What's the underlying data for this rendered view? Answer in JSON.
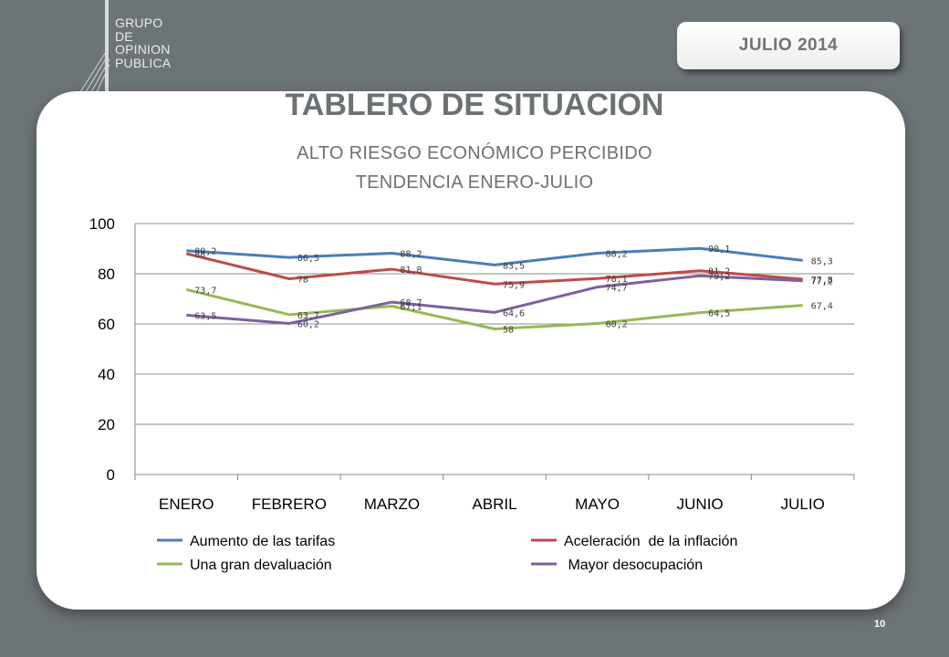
{
  "logo": {
    "lines": [
      "GRUPO",
      "DE",
      "OPINION",
      "PUBLICA"
    ]
  },
  "header": {
    "date": "JULIO  2014"
  },
  "title": "TABLERO DE SITUACIÓN",
  "subtitle_1": "ALTO RIESGO ECONÓMICO PERCIBIDO",
  "subtitle_2": "TENDENCIA ENERO-JULIO",
  "page_number": "10",
  "chart_data": {
    "type": "line",
    "categories": [
      "ENERO",
      "FEBRERO",
      "MARZO",
      "ABRIL",
      "MAYO",
      "JUNIO",
      "JULIO"
    ],
    "ylim": [
      0,
      100
    ],
    "yticks": [
      0,
      20,
      40,
      60,
      80,
      100
    ],
    "grid": true,
    "legend_position": "bottom",
    "series": [
      {
        "name": "Aumento de las tarifas",
        "color": "#4a7ebb",
        "values": [
          89.2,
          86.5,
          88.2,
          83.5,
          88.2,
          90.1,
          85.3
        ],
        "labels": [
          "89,2",
          "86,5",
          "88,2",
          "83,5",
          "88,2",
          "90,1",
          "85,3"
        ]
      },
      {
        "name": "Aceleración  de la inflación",
        "color": "#be4b48",
        "values": [
          88,
          78,
          81.8,
          75.9,
          78.1,
          81.2,
          77.8
        ],
        "labels": [
          "88",
          "78",
          "81,8",
          "75,9",
          "78,1",
          "81,2",
          "77,8"
        ]
      },
      {
        "name": "Una gran devaluación",
        "color": "#98b954",
        "values": [
          73.7,
          63.7,
          67.1,
          58,
          60.2,
          64.5,
          67.4
        ],
        "labels": [
          "73,7",
          "63,7",
          "67,1",
          "58",
          "60,2",
          "64,5",
          "67,4"
        ]
      },
      {
        "name": " Mayor desocupación",
        "color": "#7d60a0",
        "values": [
          63.5,
          60.2,
          68.7,
          64.6,
          74.7,
          79.2,
          77.2
        ],
        "labels": [
          "63,5",
          "60,2",
          "68,7",
          "64,6",
          "74,7",
          "79,2",
          "77,2"
        ]
      }
    ]
  }
}
